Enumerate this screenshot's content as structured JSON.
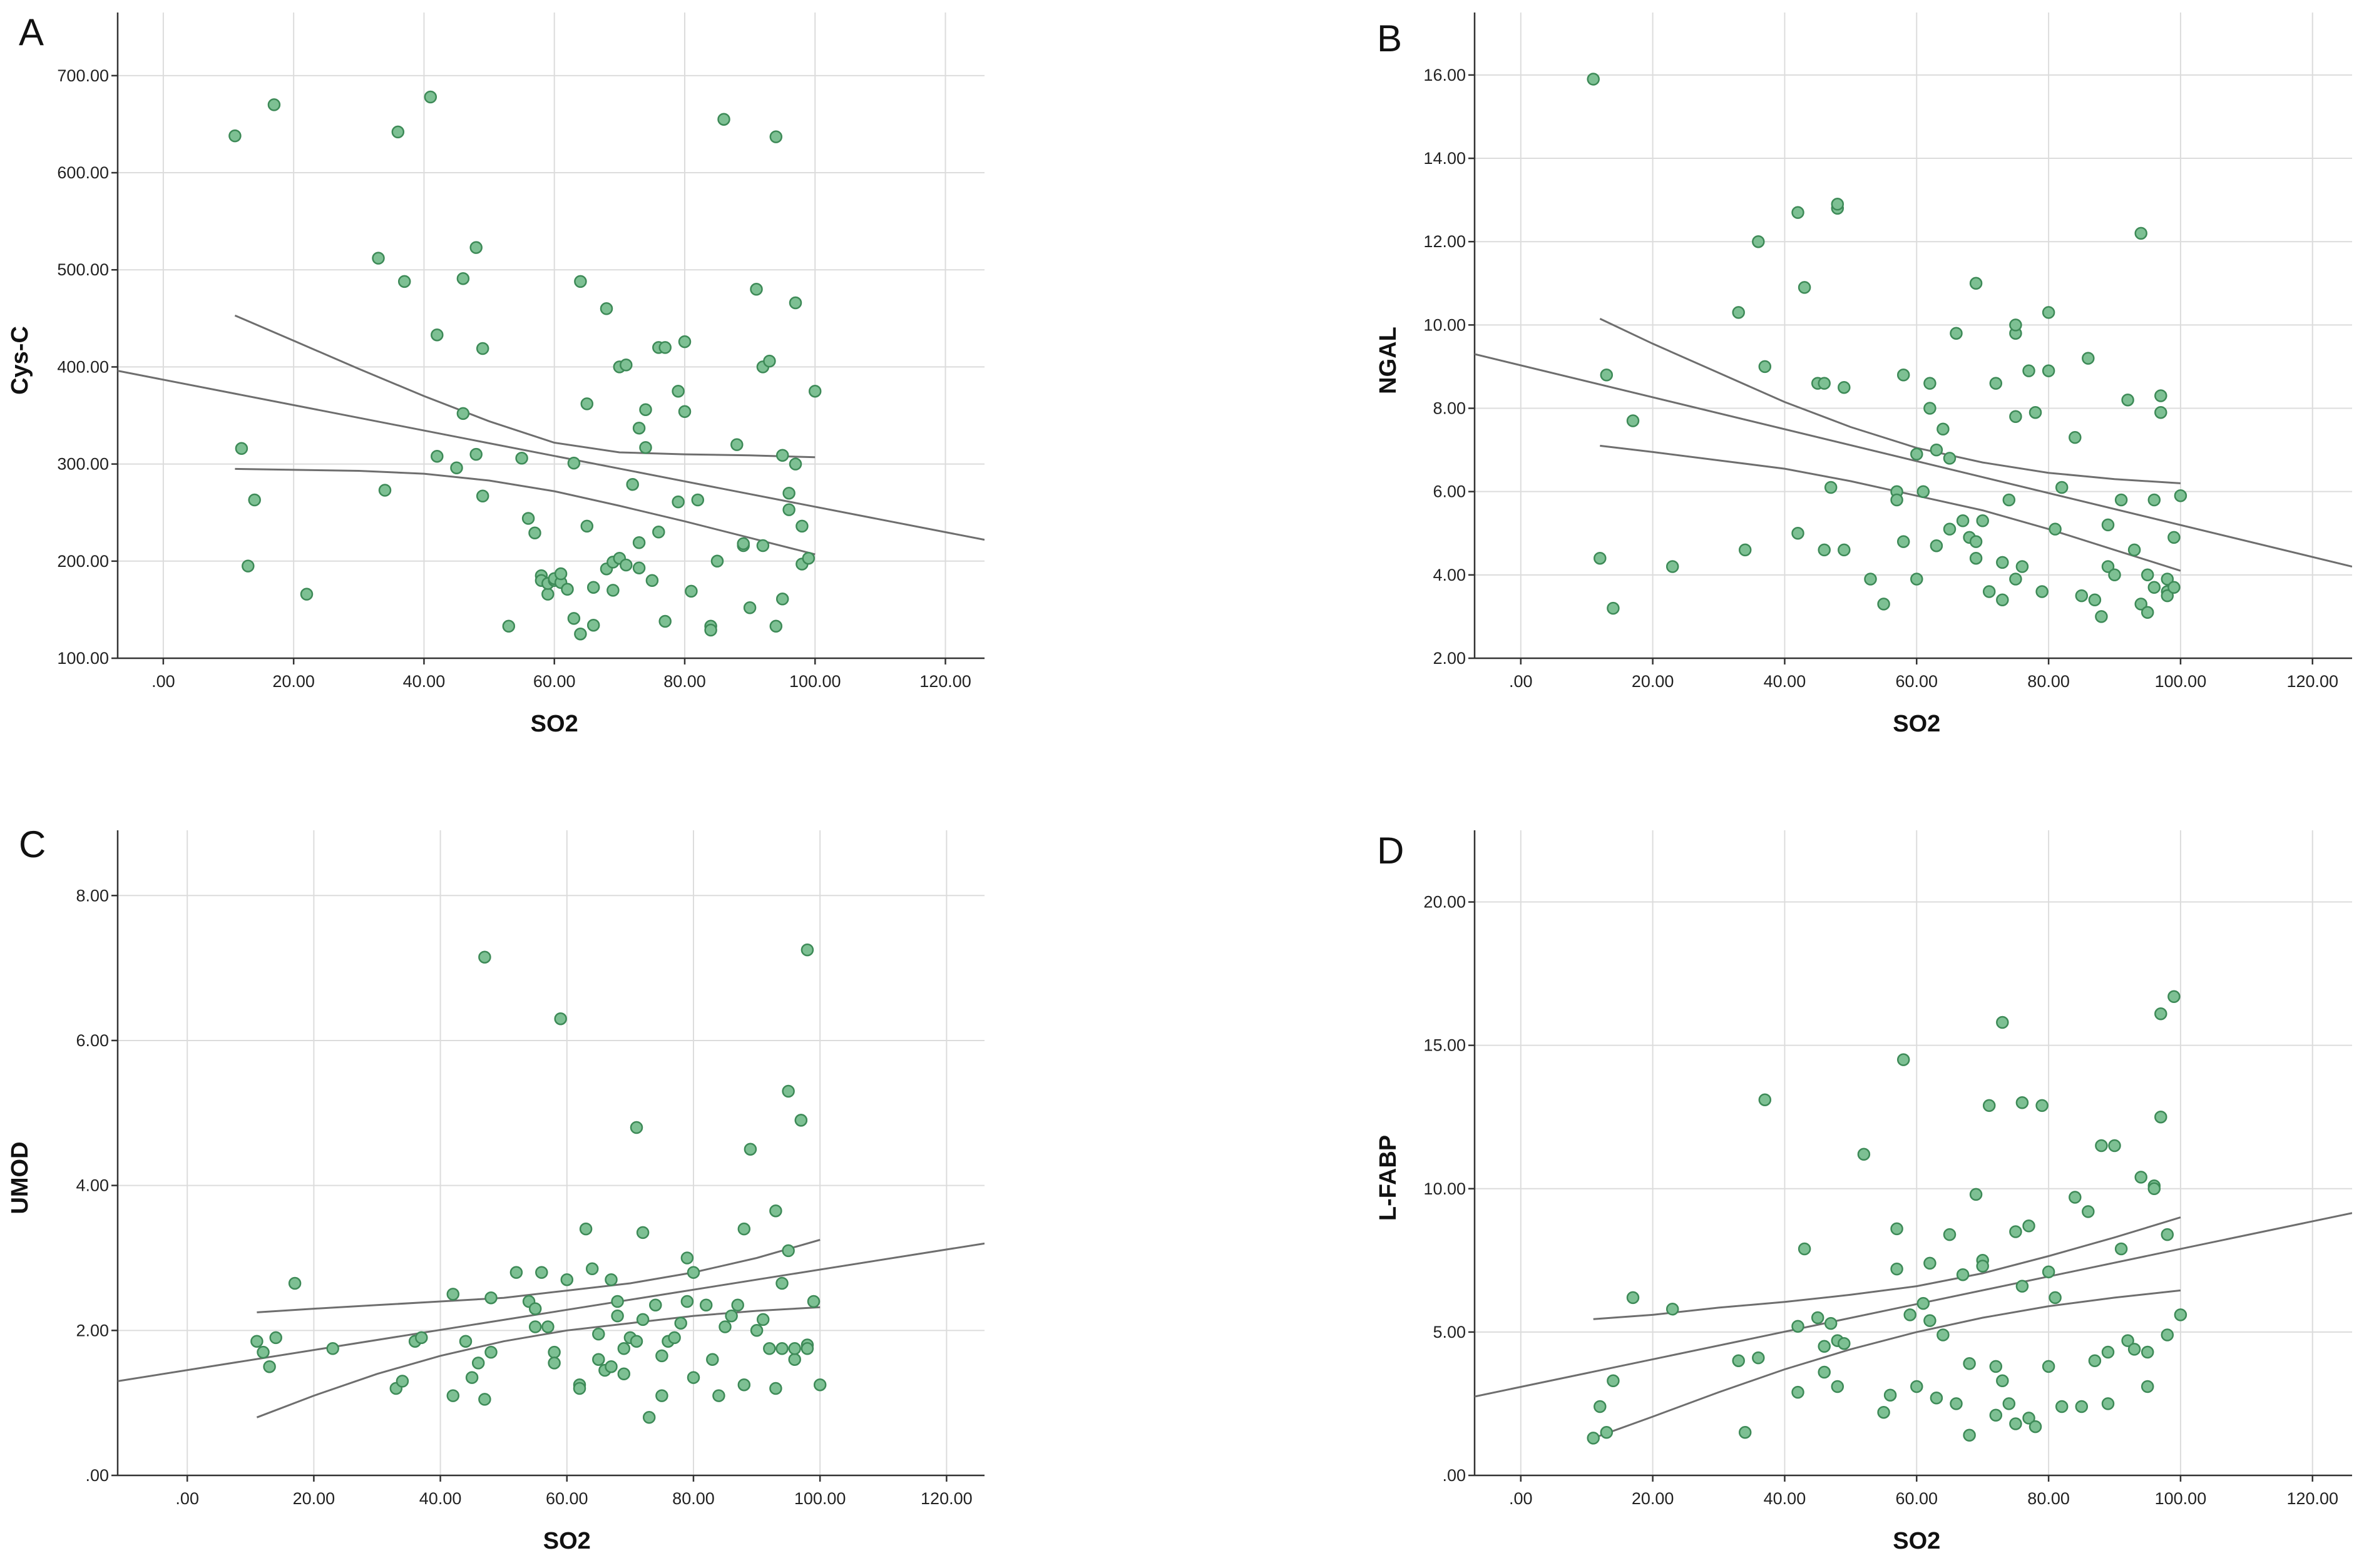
{
  "chart_data": [
    {
      "panel": "A",
      "type": "scatter",
      "title": "",
      "xlabel": "SO2",
      "ylabel": "Cys-C",
      "xlim": [
        -7,
        126
      ],
      "ylim": [
        100,
        765
      ],
      "xticks": [
        ".00",
        "20.00",
        "40.00",
        "60.00",
        "80.00",
        "100.00",
        "120.00"
      ],
      "yticks": [
        "100.00",
        "200.00",
        "300.00",
        "400.00",
        "500.00",
        "600.00",
        "700.00"
      ],
      "fit_line": {
        "x": [
          -7,
          126
        ],
        "y": [
          396,
          222
        ]
      },
      "ci_upper": {
        "x": [
          11,
          20,
          30,
          40,
          50,
          60,
          70,
          80,
          90,
          100
        ],
        "y": [
          453,
          427,
          398,
          370,
          344,
          322,
          312,
          310,
          309,
          307
        ]
      },
      "ci_lower": {
        "x": [
          11,
          20,
          30,
          40,
          50,
          60,
          70,
          80,
          90,
          100
        ],
        "y": [
          295,
          294,
          293,
          290,
          283,
          272,
          257,
          241,
          224,
          207
        ]
      },
      "points": {
        "x": [
          11,
          12,
          13,
          14,
          17,
          22,
          33,
          34,
          36,
          37,
          41,
          42,
          42,
          45,
          46,
          46,
          48,
          48,
          49,
          49,
          53,
          55,
          56,
          57,
          58,
          58,
          59,
          59,
          60,
          60,
          61,
          61,
          62,
          63,
          63,
          64,
          64,
          65,
          65,
          66,
          66,
          68,
          68,
          69,
          69,
          70,
          70,
          71,
          71,
          72,
          73,
          73,
          73,
          74,
          74,
          75,
          76,
          76,
          77,
          77,
          79,
          79,
          80,
          80,
          81,
          82,
          84,
          84,
          85,
          86,
          88,
          89,
          89,
          90,
          91,
          92,
          92,
          93,
          94,
          94,
          95,
          95,
          96,
          96,
          97,
          97,
          98,
          98,
          99,
          100
        ],
        "y": [
          638,
          316,
          195,
          263,
          670,
          166,
          512,
          273,
          642,
          488,
          678,
          308,
          433,
          296,
          352,
          491,
          310,
          523,
          419,
          267,
          133,
          306,
          244,
          229,
          185,
          180,
          166,
          177,
          180,
          182,
          178,
          187,
          171,
          301,
          141,
          488,
          125,
          362,
          236,
          173,
          134,
          460,
          192,
          170,
          199,
          400,
          203,
          196,
          402,
          279,
          337,
          193,
          219,
          317,
          356,
          180,
          420,
          230,
          420,
          138,
          375,
          261,
          426,
          354,
          169,
          263,
          133,
          129,
          200,
          655,
          320,
          216,
          218,
          152,
          480,
          400,
          216,
          406,
          637,
          133,
          309,
          161,
          253,
          270,
          300,
          466,
          236,
          197,
          203,
          375
        ]
      }
    },
    {
      "panel": "B",
      "type": "scatter",
      "title": "",
      "xlabel": "SO2",
      "ylabel": "NGAL",
      "xlim": [
        -7,
        126
      ],
      "ylim": [
        2,
        17.5
      ],
      "xticks": [
        ".00",
        "20.00",
        "40.00",
        "60.00",
        "80.00",
        "100.00",
        "120.00"
      ],
      "yticks": [
        "2.00",
        "4.00",
        "6.00",
        "8.00",
        "10.00",
        "12.00",
        "14.00",
        "16.00"
      ],
      "fit_line": {
        "x": [
          -7,
          126
        ],
        "y": [
          9.3,
          4.2
        ]
      },
      "ci_upper": {
        "x": [
          12,
          20,
          30,
          40,
          50,
          60,
          70,
          80,
          90,
          100
        ],
        "y": [
          10.15,
          9.55,
          8.85,
          8.15,
          7.55,
          7.05,
          6.7,
          6.45,
          6.3,
          6.2
        ]
      },
      "ci_lower": {
        "x": [
          12,
          20,
          30,
          40,
          50,
          60,
          70,
          80,
          90,
          100
        ],
        "y": [
          7.1,
          6.95,
          6.75,
          6.55,
          6.25,
          5.9,
          5.55,
          5.1,
          4.6,
          4.1
        ]
      },
      "points": {
        "x": [
          11,
          12,
          13,
          14,
          17,
          23,
          33,
          34,
          36,
          37,
          42,
          42,
          43,
          45,
          46,
          46,
          47,
          48,
          48,
          49,
          49,
          53,
          55,
          57,
          57,
          58,
          58,
          60,
          60,
          61,
          62,
          62,
          63,
          63,
          64,
          65,
          65,
          66,
          67,
          68,
          69,
          69,
          69,
          70,
          71,
          72,
          73,
          73,
          74,
          75,
          75,
          75,
          75,
          76,
          77,
          78,
          79,
          80,
          80,
          81,
          82,
          84,
          85,
          86,
          87,
          88,
          89,
          89,
          90,
          91,
          92,
          93,
          94,
          94,
          95,
          95,
          96,
          96,
          97,
          97,
          98,
          98,
          98,
          99,
          99,
          100
        ],
        "y": [
          15.9,
          4.4,
          8.8,
          3.2,
          7.7,
          4.2,
          10.3,
          4.6,
          12.0,
          9.0,
          12.7,
          5.0,
          10.9,
          8.6,
          4.6,
          8.6,
          6.1,
          12.8,
          12.9,
          4.6,
          8.5,
          3.9,
          3.3,
          6.0,
          5.8,
          4.8,
          8.8,
          3.9,
          6.9,
          6.0,
          8.6,
          8.0,
          7.0,
          4.7,
          7.5,
          6.8,
          5.1,
          9.8,
          5.3,
          4.9,
          4.4,
          4.8,
          11.0,
          5.3,
          3.6,
          8.6,
          3.4,
          4.3,
          5.8,
          3.9,
          9.8,
          10.0,
          7.8,
          4.2,
          8.9,
          7.9,
          3.6,
          10.3,
          8.9,
          5.1,
          6.1,
          7.3,
          3.5,
          9.2,
          3.4,
          3.0,
          4.2,
          5.2,
          4.0,
          5.8,
          8.2,
          4.6,
          12.2,
          3.3,
          4.0,
          3.1,
          5.8,
          3.7,
          8.3,
          7.9,
          3.6,
          3.9,
          3.5,
          4.9,
          3.7,
          5.9
        ]
      }
    },
    {
      "panel": "C",
      "type": "scatter",
      "title": "",
      "xlabel": "SO2",
      "ylabel": "UMOD",
      "xlim": [
        -11,
        126
      ],
      "ylim": [
        0,
        8.9
      ],
      "xticks": [
        ".00",
        "20.00",
        "40.00",
        "60.00",
        "80.00",
        "100.00",
        "120.00"
      ],
      "yticks": [
        ".00",
        "2.00",
        "4.00",
        "6.00",
        "8.00"
      ],
      "fit_line": {
        "x": [
          -11,
          126
        ],
        "y": [
          1.3,
          3.2
        ]
      },
      "ci_upper": {
        "x": [
          11,
          20,
          30,
          40,
          50,
          60,
          70,
          80,
          90,
          100
        ],
        "y": [
          2.25,
          2.3,
          2.35,
          2.4,
          2.45,
          2.55,
          2.65,
          2.8,
          3.0,
          3.25
        ]
      },
      "ci_lower": {
        "x": [
          11,
          20,
          30,
          40,
          50,
          60,
          70,
          80,
          90,
          100
        ],
        "y": [
          0.8,
          1.1,
          1.4,
          1.65,
          1.85,
          2.0,
          2.1,
          2.2,
          2.27,
          2.32
        ]
      },
      "points": {
        "x": [
          11,
          12,
          13,
          14,
          17,
          23,
          33,
          34,
          36,
          37,
          42,
          42,
          44,
          45,
          46,
          47,
          47,
          48,
          48,
          52,
          54,
          55,
          55,
          56,
          57,
          58,
          58,
          59,
          60,
          62,
          62,
          63,
          64,
          65,
          65,
          66,
          67,
          67,
          68,
          68,
          69,
          69,
          70,
          71,
          71,
          72,
          72,
          73,
          74,
          75,
          75,
          76,
          77,
          78,
          79,
          79,
          80,
          80,
          82,
          83,
          84,
          85,
          86,
          87,
          88,
          88,
          89,
          90,
          91,
          92,
          93,
          93,
          94,
          94,
          95,
          95,
          96,
          96,
          97,
          97,
          98,
          98,
          98,
          99,
          100
        ],
        "y": [
          1.85,
          1.7,
          1.5,
          1.9,
          2.65,
          1.75,
          1.2,
          1.3,
          1.85,
          1.9,
          1.1,
          2.5,
          1.85,
          1.35,
          1.55,
          7.15,
          1.05,
          2.45,
          1.7,
          2.8,
          2.4,
          2.3,
          2.05,
          2.8,
          2.05,
          1.7,
          1.55,
          6.3,
          2.7,
          1.25,
          1.2,
          3.4,
          2.85,
          1.95,
          1.6,
          1.45,
          1.5,
          2.7,
          2.2,
          2.4,
          1.75,
          1.4,
          1.9,
          4.8,
          1.85,
          2.15,
          3.35,
          0.8,
          2.35,
          1.1,
          1.65,
          1.85,
          1.9,
          2.1,
          2.4,
          3.0,
          1.35,
          2.8,
          2.35,
          1.6,
          1.1,
          2.05,
          2.2,
          2.35,
          1.25,
          3.4,
          4.5,
          2.0,
          2.15,
          1.75,
          3.65,
          1.2,
          2.65,
          1.75,
          3.1,
          5.3,
          1.6,
          1.75,
          4.9,
          4.9,
          7.25,
          1.8,
          1.75,
          2.4,
          1.25
        ]
      }
    },
    {
      "panel": "D",
      "type": "scatter",
      "title": "",
      "xlabel": "SO2",
      "ylabel": "L-FABP",
      "xlim": [
        -7,
        126
      ],
      "ylim": [
        0,
        22.5
      ],
      "xticks": [
        ".00",
        "20.00",
        "40.00",
        "60.00",
        "80.00",
        "100.00",
        "120.00"
      ],
      "yticks": [
        ".00",
        "5.00",
        "10.00",
        "15.00",
        "20.00"
      ],
      "fit_line": {
        "x": [
          -7,
          126
        ],
        "y": [
          2.75,
          9.15
        ]
      },
      "ci_upper": {
        "x": [
          11,
          20,
          30,
          40,
          50,
          60,
          70,
          80,
          90,
          100
        ],
        "y": [
          5.45,
          5.6,
          5.85,
          6.05,
          6.3,
          6.6,
          7.05,
          7.65,
          8.3,
          9.0
        ]
      },
      "ci_lower": {
        "x": [
          11,
          20,
          30,
          40,
          50,
          60,
          70,
          80,
          90,
          100
        ],
        "y": [
          1.3,
          2.05,
          2.9,
          3.7,
          4.4,
          5.0,
          5.5,
          5.9,
          6.2,
          6.45
        ]
      },
      "points": {
        "x": [
          11,
          12,
          13,
          14,
          17,
          23,
          33,
          34,
          36,
          37,
          42,
          42,
          43,
          45,
          46,
          46,
          47,
          48,
          48,
          49,
          52,
          55,
          56,
          57,
          57,
          58,
          59,
          60,
          61,
          62,
          62,
          63,
          64,
          65,
          66,
          67,
          68,
          68,
          69,
          70,
          70,
          71,
          72,
          72,
          73,
          73,
          74,
          75,
          75,
          76,
          76,
          77,
          77,
          78,
          79,
          80,
          80,
          81,
          82,
          84,
          85,
          86,
          87,
          88,
          89,
          89,
          90,
          91,
          92,
          93,
          94,
          95,
          95,
          96,
          96,
          97,
          97,
          98,
          98,
          99,
          100
        ],
        "y": [
          1.3,
          2.4,
          1.5,
          3.3,
          6.2,
          5.8,
          4.0,
          1.5,
          4.1,
          13.1,
          2.9,
          5.2,
          7.9,
          5.5,
          4.5,
          3.6,
          5.3,
          4.7,
          3.1,
          4.6,
          11.2,
          2.2,
          2.8,
          8.6,
          7.2,
          14.5,
          5.6,
          3.1,
          6.0,
          5.4,
          7.4,
          2.7,
          4.9,
          8.4,
          2.5,
          7.0,
          3.9,
          1.4,
          9.8,
          7.5,
          7.3,
          12.9,
          3.8,
          2.1,
          3.3,
          15.8,
          2.5,
          8.5,
          1.8,
          6.6,
          13.0,
          2.0,
          8.7,
          1.7,
          12.9,
          7.1,
          3.8,
          6.2,
          2.4,
          9.7,
          2.4,
          9.2,
          4.0,
          11.5,
          2.5,
          4.3,
          11.5,
          7.9,
          4.7,
          4.4,
          10.4,
          3.1,
          4.3,
          10.1,
          10.0,
          16.1,
          12.5,
          8.4,
          4.9,
          16.7,
          5.6
        ]
      }
    }
  ],
  "colors": {
    "point_fill": "#7dc093",
    "point_stroke": "#3d8a57",
    "fit_line": "#6e6e6e",
    "grid": "#dcdcdc",
    "axis": "#333333"
  }
}
